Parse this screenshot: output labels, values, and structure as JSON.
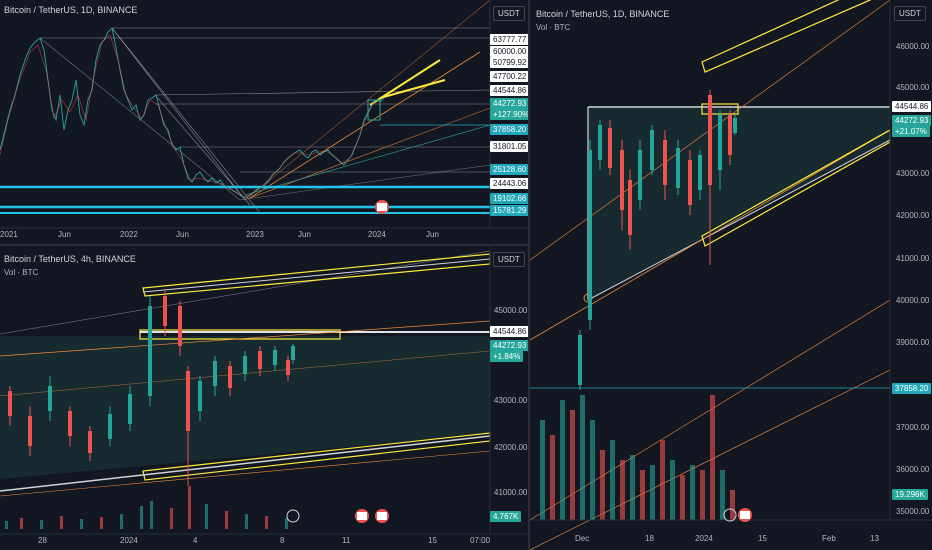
{
  "panels": {
    "top_left": {
      "title": "Bitcoin / TetherUS, 1D, BINANCE",
      "currency": "USDT",
      "price_levels": [
        "63777.77",
        "60000.00",
        "50799.92",
        "47700.22",
        "44544.86",
        "44272.93",
        "+127.90%",
        "37858.20",
        "31801.05",
        "25128.60",
        "24443.06",
        "19102.66",
        "15781.29"
      ],
      "x_labels": [
        "2021",
        "Jun",
        "2022",
        "Jun",
        "2023",
        "Jun",
        "2024",
        "Jun"
      ]
    },
    "bottom_left": {
      "title": "Bitcoin / TetherUS, 4h, BINANCE",
      "volume_label": "Vol · BTC",
      "currency": "USDT",
      "y_labels": [
        "45000.00",
        "43000.00",
        "42000.00",
        "41000.00"
      ],
      "price_levels": [
        "44544.86",
        "44272.93",
        "+1.84%",
        "4.767K"
      ],
      "x_labels": [
        "28",
        "2024",
        "4",
        "8",
        "11",
        "15",
        "07:00"
      ]
    },
    "right": {
      "title": "Bitcoin / TetherUS, 1D, BINANCE",
      "volume_label": "Vol · BTC",
      "currency": "USDT",
      "y_labels": [
        "46000.00",
        "45000.00",
        "43000.00",
        "42000.00",
        "41000.00",
        "40000.00",
        "39000.00",
        "37000.00",
        "36000.00",
        "35000.00"
      ],
      "price_levels": [
        "44544.86",
        "44272.93",
        "+21.07%",
        "37858.20",
        "19.296K"
      ],
      "x_labels": [
        "Dec",
        "18",
        "2024",
        "15",
        "Feb",
        "13"
      ]
    }
  },
  "colors": {
    "background": "#131722",
    "bull": "#26a69a",
    "bear": "#ef5350",
    "highlight": "#ffeb3b",
    "support": "#22c5e8"
  }
}
